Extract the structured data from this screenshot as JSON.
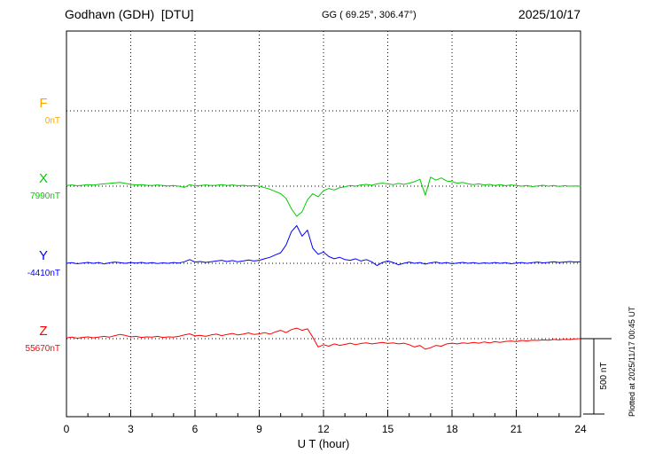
{
  "header": {
    "station": "Godhavn (GDH)  [DTU]",
    "coordinates": "GG ( 69.25°, 306.47°)",
    "date": "2025/10/17"
  },
  "footer": {
    "plotted_at": "Plotted at 2025/11/17 00:45 UT"
  },
  "chart_data": {
    "type": "line",
    "title": "Godhavn (GDH)  [DTU]",
    "xlabel": "U T (hour)",
    "x_range": [
      0,
      24
    ],
    "x_ticks": [
      0,
      3,
      6,
      9,
      12,
      15,
      18,
      21,
      24
    ],
    "x_start": 0,
    "x_step": 0.25,
    "grid": "dotted",
    "scale_bar": {
      "label": "500 nT",
      "nT": 500
    },
    "series": [
      {
        "name": "F",
        "baseline_label": "0nT",
        "baseline_nT": 0,
        "color": "#FFA500",
        "values": []
      },
      {
        "name": "X",
        "baseline_label": "7990nT",
        "baseline_nT": 7990,
        "color": "#00CC00",
        "values": [
          5,
          8,
          3,
          6,
          10,
          7,
          12,
          15,
          18,
          22,
          25,
          18,
          12,
          8,
          10,
          6,
          4,
          8,
          5,
          2,
          5,
          0,
          -8,
          10,
          2,
          5,
          8,
          4,
          6,
          10,
          5,
          8,
          3,
          6,
          2,
          5,
          0,
          -10,
          -20,
          -35,
          -50,
          -80,
          -150,
          -200,
          -170,
          -90,
          -50,
          -70,
          -30,
          -15,
          -25,
          -10,
          -5,
          5,
          0,
          8,
          12,
          6,
          15,
          20,
          15,
          10,
          18,
          12,
          20,
          30,
          45,
          -60,
          60,
          40,
          55,
          35,
          30,
          20,
          25,
          15,
          10,
          15,
          8,
          12,
          5,
          10,
          3,
          8,
          5,
          0,
          5,
          -3,
          2,
          6,
          0,
          4,
          -2,
          3,
          0,
          2,
          0
        ]
      },
      {
        "name": "Y",
        "baseline_label": "-4410nT",
        "baseline_nT": -4410,
        "color": "#0000FF",
        "values": [
          0,
          4,
          -3,
          2,
          6,
          0,
          5,
          -4,
          3,
          8,
          4,
          0,
          5,
          2,
          6,
          0,
          4,
          -2,
          3,
          0,
          5,
          2,
          10,
          25,
          8,
          12,
          6,
          10,
          15,
          20,
          12,
          18,
          10,
          15,
          22,
          15,
          20,
          30,
          40,
          55,
          70,
          120,
          210,
          250,
          180,
          220,
          100,
          60,
          75,
          45,
          30,
          40,
          25,
          20,
          30,
          15,
          25,
          10,
          -15,
          5,
          15,
          5,
          -10,
          0,
          8,
          0,
          5,
          -5,
          3,
          8,
          0,
          5,
          -3,
          2,
          6,
          0,
          4,
          -2,
          3,
          0,
          5,
          0,
          4,
          -3,
          2,
          5,
          0,
          4,
          8,
          3,
          6,
          10,
          5,
          8,
          12,
          8,
          10
        ]
      },
      {
        "name": "Z",
        "baseline_label": "55670nT",
        "baseline_nT": 55670,
        "color": "#FF0000",
        "values": [
          5,
          10,
          3,
          8,
          12,
          6,
          10,
          15,
          10,
          20,
          28,
          22,
          12,
          15,
          8,
          12,
          10,
          15,
          8,
          12,
          10,
          15,
          25,
          32,
          18,
          22,
          15,
          25,
          30,
          20,
          28,
          35,
          25,
          30,
          38,
          28,
          32,
          40,
          30,
          45,
          55,
          40,
          60,
          70,
          55,
          65,
          10,
          -55,
          -40,
          -50,
          -35,
          -45,
          -38,
          -30,
          -40,
          -32,
          -28,
          -35,
          -30,
          -25,
          -32,
          -28,
          -35,
          -30,
          -40,
          -55,
          -45,
          -70,
          -60,
          -45,
          -50,
          -35,
          -30,
          -35,
          -28,
          -32,
          -25,
          -30,
          -22,
          -28,
          -20,
          -25,
          -18,
          -15,
          -20,
          -12,
          -15,
          -10,
          -12,
          -8,
          -10,
          -5,
          -8,
          -4,
          -6,
          -2,
          0
        ]
      }
    ]
  }
}
